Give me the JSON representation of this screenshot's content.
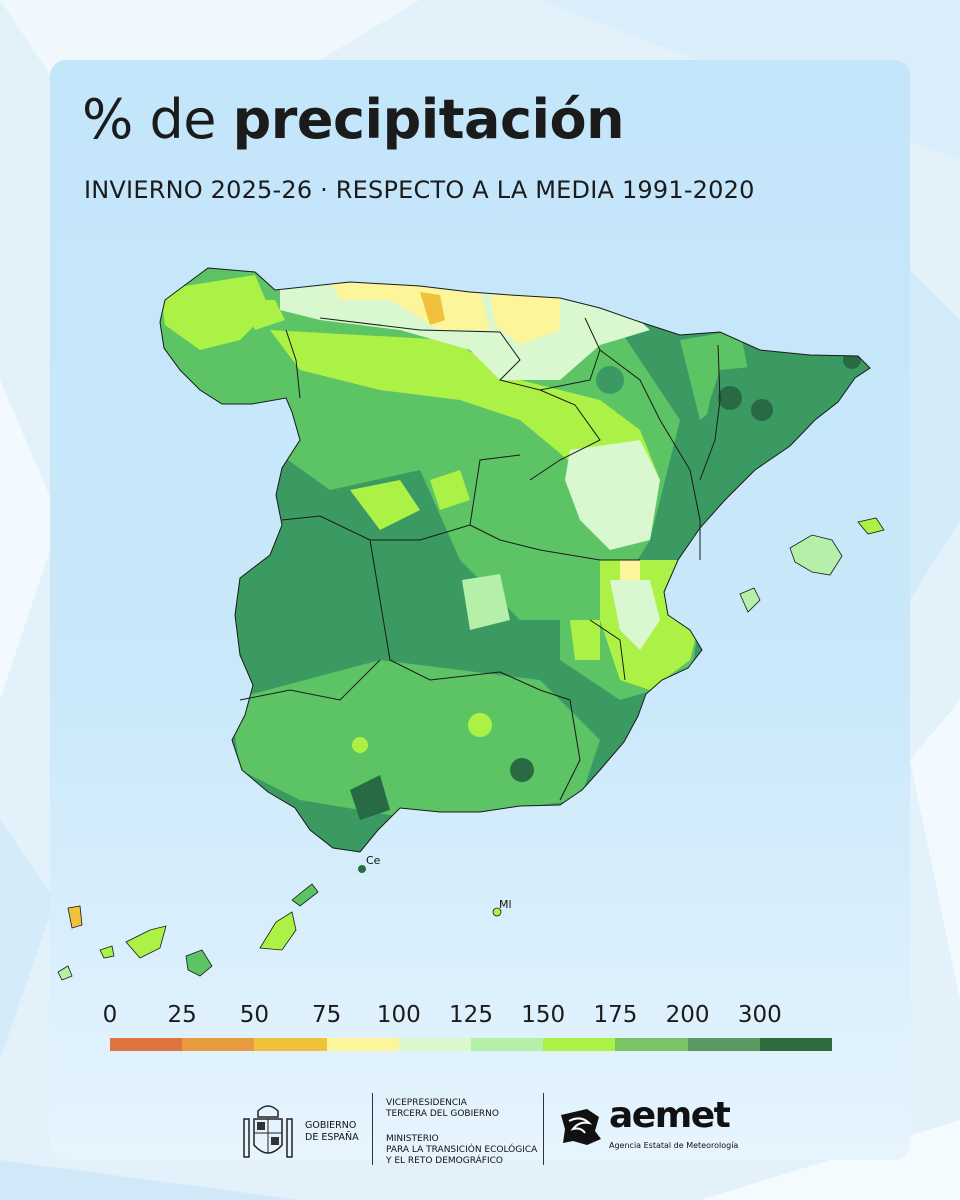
{
  "header": {
    "title_light": "% de ",
    "title_bold": "precipitación",
    "subtitle": "INVIERNO 2025-26 · RESPECTO A LA MEDIA 1991-2020"
  },
  "map": {
    "labels": {
      "ceuta": "Ce",
      "melilla": "Ml"
    }
  },
  "legend": {
    "ticks": [
      "0",
      "25",
      "50",
      "75",
      "100",
      "125",
      "150",
      "175",
      "200",
      "300"
    ],
    "colors": [
      "#de7440",
      "#e89a40",
      "#f0c23c",
      "#fcf59a",
      "#d9f8cf",
      "#b5f0a8",
      "#acf246",
      "#7cc566",
      "#5a9a62",
      "#306a3e"
    ]
  },
  "map_colors": {
    "sea": "#c4e6fa",
    "dry_yellow": "#fcf59a",
    "orange": "#f0c23c",
    "pale_green": "#d9f8cf",
    "light_green": "#b5f0a8",
    "lime": "#acf246",
    "medium_green": "#5cc464",
    "dark_green": "#3a9a62",
    "darkest_green": "#286a44",
    "borders": "#1a1a1a"
  },
  "footer": {
    "gobierno_line1": "GOBIERNO",
    "gobierno_line2": "DE ESPAÑA",
    "vice_line1": "VICEPRESIDENCIA",
    "vice_line2": "TERCERA DEL GOBIERNO",
    "min_line1": "MINISTERIO",
    "min_line2": "PARA LA TRANSICIÓN ECOLÓGICA",
    "min_line3": "Y EL RETO DEMOGRÁFICO",
    "aemet_name": "aemet",
    "aemet_sub": "Agencia Estatal de Meteorología"
  }
}
